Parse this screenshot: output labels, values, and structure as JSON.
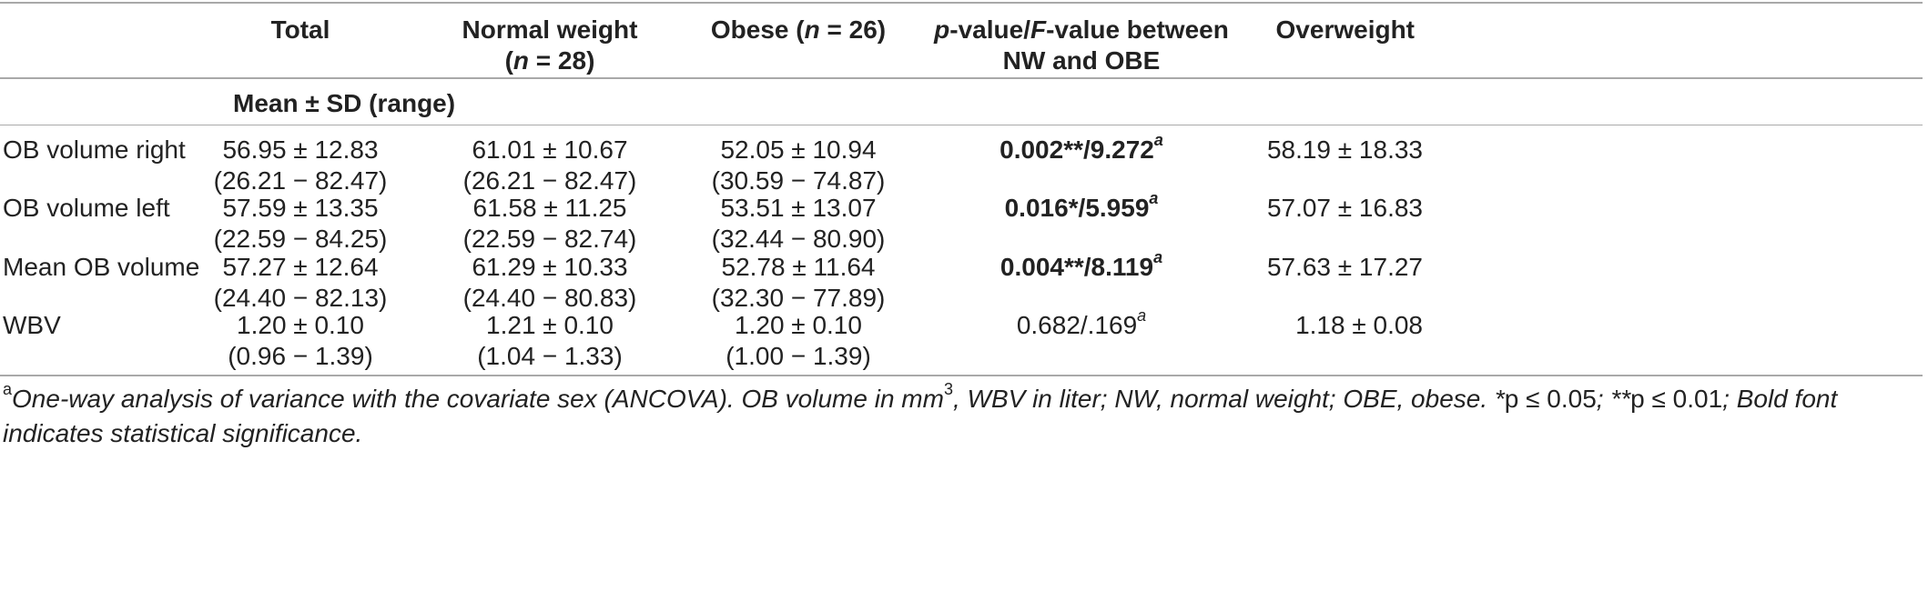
{
  "header": {
    "col_total": "Total",
    "col_normal_line1": "Normal weight",
    "col_normal_n_var": "n",
    "col_normal_n_val": " = 28)",
    "col_obese_prefix": "Obese (",
    "col_obese_n_var": "n",
    "col_obese_n_val": " = 26)",
    "col_p_var": "p",
    "col_p_mid": "-value/",
    "col_f_var": "F",
    "col_p_rest": "-value between",
    "col_p_line2": "NW and OBE",
    "col_overweight": "Overweight",
    "subheader": "Mean ± SD (range)"
  },
  "rows": [
    {
      "label": "OB volume right",
      "total_mean": "56.95 ± 12.83",
      "total_range": "(26.21 − 82.47)",
      "nw_mean": "61.01 ± 10.67",
      "nw_range": "(26.21 − 82.47)",
      "obese_mean": "52.05 ± 10.94",
      "obese_range": "(30.59 − 74.87)",
      "pval": "0.002**/9.272",
      "pval_sup": "a",
      "overweight": "58.19 ± 18.33"
    },
    {
      "label": "OB volume left",
      "total_mean": "57.59 ± 13.35",
      "total_range": "(22.59 − 84.25)",
      "nw_mean": "61.58 ± 11.25",
      "nw_range": "(22.59 − 82.74)",
      "obese_mean": "53.51 ± 13.07",
      "obese_range": "(32.44 − 80.90)",
      "pval": "0.016*/5.959",
      "pval_sup": "a",
      "overweight": "57.07 ± 16.83"
    },
    {
      "label": "Mean OB volume",
      "total_mean": "57.27 ± 12.64",
      "total_range": "(24.40 − 82.13)",
      "nw_mean": "61.29 ± 10.33",
      "nw_range": "(24.40 − 80.83)",
      "obese_mean": "52.78 ± 11.64",
      "obese_range": "(32.30 − 77.89)",
      "pval": "0.004**/8.119",
      "pval_sup": "a",
      "overweight": "57.63 ± 17.27"
    },
    {
      "label": "WBV",
      "total_mean": "1.20 ± 0.10",
      "total_range": "(0.96 − 1.39)",
      "nw_mean": "1.21 ± 0.10",
      "nw_range": "(1.04 − 1.33)",
      "obese_mean": "1.20 ± 0.10",
      "obese_range": "(1.00 − 1.39)",
      "pval": "0.682/.169",
      "pval_sup": "a",
      "overweight": "1.18 ± 0.08"
    }
  ],
  "footnote": {
    "marker": "a",
    "text1": "One-way analysis of variance with the covariate sex (ANCOVA). OB volume in mm",
    "sup3": "3",
    "text2": ", WBV in liter; NW, normal weight; OBE, obese. *",
    "p1": "p ≤ 0.05",
    "text3": "; **",
    "p2": "p ≤ 0.01",
    "text4": "; Bold font",
    "line2": "indicates statistical significance."
  }
}
